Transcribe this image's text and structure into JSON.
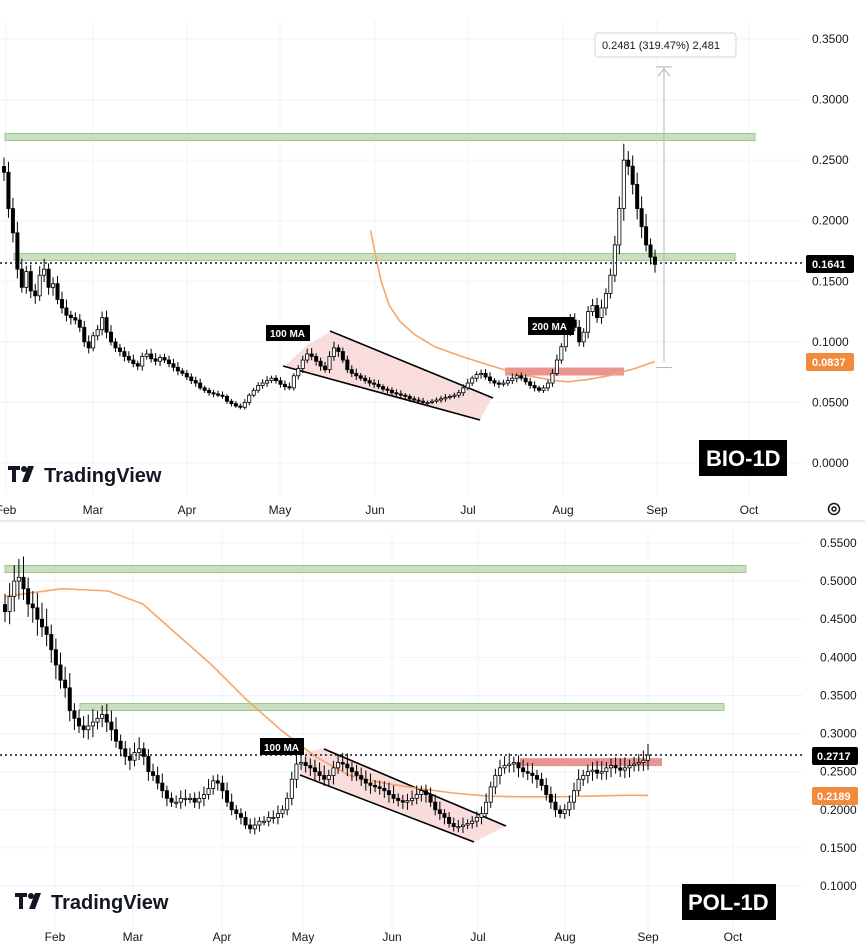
{
  "colors": {
    "candle": "#000000",
    "ma": "#f5a66b",
    "support_zone": "#c9dfc0",
    "support_edge": "#9cc78f",
    "resistance_zone": "#e99393",
    "wedge_fill": "#f8d3d3",
    "last_price_tag": "#000000",
    "ma_price_tag": "#f28a3c",
    "grid": "#f0f3fa"
  },
  "branding": {
    "logo_text": "TradingView"
  },
  "settings_icon": "gear-icon",
  "chart_data": [
    {
      "type": "candlestick",
      "title": "BIO-1D",
      "x_ticks": [
        "Feb",
        "Mar",
        "Apr",
        "May",
        "Jun",
        "Jul",
        "Aug",
        "Sep",
        "Oct"
      ],
      "y_ticks": [
        "0.3500",
        "0.3000",
        "0.2500",
        "0.2000",
        "0.1500",
        "0.1000",
        "0.0500",
        "0.0000"
      ],
      "ylim": [
        0.0,
        0.35
      ],
      "x_range": [
        "2025-02-01",
        "2025-10-05"
      ],
      "last_price": "0.1641",
      "ma_value": "0.0837",
      "ma_label": "200 MA",
      "ma_label_2": "100 MA",
      "measure_label": "0.2481 (319.47%) 2,481",
      "approx_closes": [
        0.24,
        0.21,
        0.19,
        0.16,
        0.145,
        0.158,
        0.142,
        0.138,
        0.155,
        0.16,
        0.145,
        0.148,
        0.135,
        0.128,
        0.122,
        0.12,
        0.118,
        0.112,
        0.1,
        0.095,
        0.105,
        0.11,
        0.12,
        0.108,
        0.1,
        0.095,
        0.092,
        0.088,
        0.085,
        0.082,
        0.08,
        0.088,
        0.09,
        0.086,
        0.084,
        0.087,
        0.085,
        0.082,
        0.079,
        0.076,
        0.074,
        0.071,
        0.068,
        0.066,
        0.062,
        0.06,
        0.058,
        0.057,
        0.056,
        0.055,
        0.051,
        0.049,
        0.047,
        0.046,
        0.05,
        0.056,
        0.06,
        0.064,
        0.066,
        0.068,
        0.07,
        0.068,
        0.065,
        0.063,
        0.062,
        0.072,
        0.078,
        0.085,
        0.09,
        0.088,
        0.084,
        0.08,
        0.077,
        0.088,
        0.095,
        0.092,
        0.085,
        0.077,
        0.074,
        0.072,
        0.07,
        0.068,
        0.066,
        0.065,
        0.063,
        0.061,
        0.06,
        0.058,
        0.057,
        0.056,
        0.055,
        0.053,
        0.052,
        0.051,
        0.05,
        0.05,
        0.051,
        0.052,
        0.053,
        0.054,
        0.055,
        0.056,
        0.058,
        0.062,
        0.066,
        0.07,
        0.073,
        0.074,
        0.071,
        0.068,
        0.066,
        0.065,
        0.066,
        0.068,
        0.07,
        0.072,
        0.07,
        0.067,
        0.064,
        0.062,
        0.06,
        0.062,
        0.066,
        0.074,
        0.085,
        0.096,
        0.11,
        0.118,
        0.112,
        0.1,
        0.108,
        0.125,
        0.13,
        0.12,
        0.128,
        0.14,
        0.155,
        0.18,
        0.21,
        0.25,
        0.245,
        0.23,
        0.21,
        0.195,
        0.18,
        0.17,
        0.164
      ],
      "ma_points": [
        [
          112,
          0.192
        ],
        [
          116,
          0.17
        ],
        [
          120,
          0.15
        ],
        [
          126,
          0.13
        ],
        [
          134,
          0.117
        ],
        [
          145,
          0.106
        ],
        [
          160,
          0.096
        ],
        [
          180,
          0.088
        ],
        [
          200,
          0.081
        ],
        [
          215,
          0.076
        ],
        [
          230,
          0.072
        ],
        [
          240,
          0.07
        ],
        [
          250,
          0.068
        ],
        [
          260,
          0.067
        ],
        [
          275,
          0.069
        ],
        [
          290,
          0.072
        ],
        [
          300,
          0.075
        ],
        [
          310,
          0.078
        ],
        [
          320,
          0.082
        ],
        [
          325,
          0.0837
        ]
      ],
      "support_levels": [
        0.2695,
        0.1705
      ],
      "resistance_level": 0.0755,
      "wedge": {
        "upper": [
          [
            0.0925,
            "May 12"
          ],
          [
            0.058,
            "Jul 2"
          ]
        ],
        "lower": [
          [
            0.077,
            "May 1"
          ],
          [
            0.037,
            "Jul 1"
          ]
        ]
      }
    },
    {
      "type": "candlestick",
      "title": "POL-1D",
      "x_ticks": [
        "Feb",
        "Mar",
        "Apr",
        "May",
        "Jun",
        "Jul",
        "Aug",
        "Sep",
        "Oct"
      ],
      "y_ticks": [
        "0.5500",
        "0.5000",
        "0.4500",
        "0.4000",
        "0.3500",
        "0.3000",
        "0.2500",
        "0.2000",
        "0.1500",
        "0.1000"
      ],
      "ylim": [
        0.1,
        0.55
      ],
      "x_range": [
        "2025-01-20",
        "2025-10-10"
      ],
      "last_price": "0.2717",
      "ma_value": "0.2189",
      "ma_label": "100 MA",
      "approx_closes": [
        0.46,
        0.48,
        0.5,
        0.505,
        0.49,
        0.47,
        0.465,
        0.45,
        0.44,
        0.43,
        0.41,
        0.39,
        0.37,
        0.36,
        0.33,
        0.32,
        0.31,
        0.305,
        0.31,
        0.315,
        0.32,
        0.325,
        0.315,
        0.305,
        0.29,
        0.28,
        0.27,
        0.265,
        0.275,
        0.28,
        0.27,
        0.25,
        0.245,
        0.235,
        0.225,
        0.215,
        0.21,
        0.21,
        0.215,
        0.215,
        0.215,
        0.21,
        0.215,
        0.22,
        0.228,
        0.238,
        0.235,
        0.225,
        0.21,
        0.2,
        0.195,
        0.19,
        0.18,
        0.175,
        0.18,
        0.185,
        0.185,
        0.19,
        0.19,
        0.195,
        0.2,
        0.215,
        0.24,
        0.26,
        0.262,
        0.258,
        0.255,
        0.25,
        0.245,
        0.24,
        0.245,
        0.255,
        0.262,
        0.26,
        0.255,
        0.25,
        0.245,
        0.24,
        0.235,
        0.232,
        0.23,
        0.228,
        0.225,
        0.22,
        0.215,
        0.212,
        0.21,
        0.212,
        0.215,
        0.22,
        0.225,
        0.22,
        0.21,
        0.2,
        0.195,
        0.19,
        0.182,
        0.178,
        0.178,
        0.18,
        0.182,
        0.185,
        0.19,
        0.195,
        0.21,
        0.23,
        0.245,
        0.255,
        0.258,
        0.26,
        0.262,
        0.255,
        0.25,
        0.248,
        0.245,
        0.24,
        0.232,
        0.22,
        0.21,
        0.2,
        0.195,
        0.2,
        0.21,
        0.225,
        0.24,
        0.245,
        0.25,
        0.252,
        0.248,
        0.25,
        0.255,
        0.258,
        0.255,
        0.252,
        0.255,
        0.258,
        0.26,
        0.262,
        0.265,
        0.2717
      ],
      "ma_points": [
        [
          0,
          0.48
        ],
        [
          25,
          0.49
        ],
        [
          45,
          0.487
        ],
        [
          60,
          0.47
        ],
        [
          75,
          0.43
        ],
        [
          90,
          0.39
        ],
        [
          105,
          0.345
        ],
        [
          120,
          0.305
        ],
        [
          135,
          0.27
        ],
        [
          150,
          0.245
        ],
        [
          165,
          0.235
        ],
        [
          180,
          0.228
        ],
        [
          195,
          0.222
        ],
        [
          210,
          0.218
        ],
        [
          225,
          0.217
        ],
        [
          240,
          0.217
        ],
        [
          255,
          0.218
        ],
        [
          270,
          0.219
        ],
        [
          280,
          0.2189
        ]
      ],
      "support_levels": [
        0.5165,
        0.3355
      ],
      "resistance_level": 0.2625
    }
  ]
}
